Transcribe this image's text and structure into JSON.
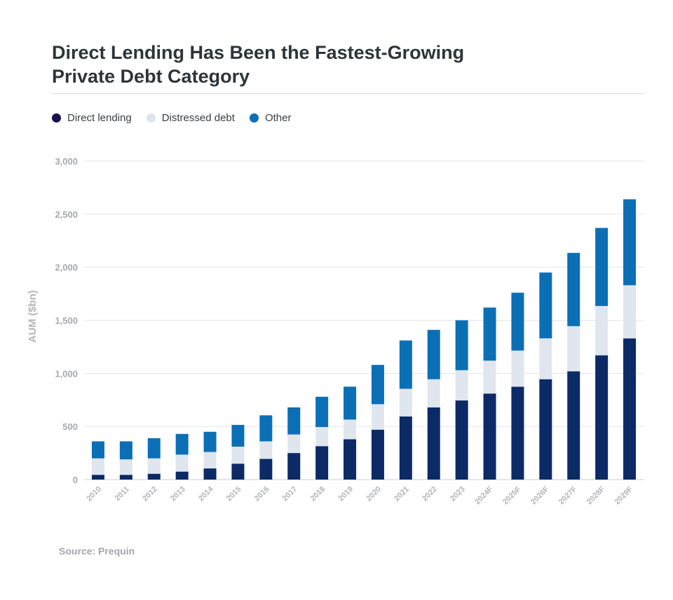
{
  "title_lines": [
    "Direct Lending Has Been the Fastest-Growing",
    "Private Debt Category"
  ],
  "legend": [
    {
      "label": "Direct lending",
      "color": "#0b1f4f"
    },
    {
      "label": "Distressed debt",
      "color": "#dde4ec"
    },
    {
      "label": "Other",
      "color": "#0b6fb6"
    }
  ],
  "source": "Source: Prequin",
  "chart_data": {
    "type": "bar",
    "stacked": true,
    "title": "Direct Lending Has Been the Fastest-Growing Private Debt Category",
    "xlabel": "",
    "ylabel": "AUM ($bn)",
    "ylim": [
      0,
      3000
    ],
    "yticks": [
      0,
      500,
      1000,
      1500,
      2000,
      2500,
      3000
    ],
    "ytick_labels": [
      "0",
      "500",
      "1,000",
      "1,500",
      "2,000",
      "2,500",
      "3,000"
    ],
    "grid": true,
    "legend_position": "top-left",
    "categories": [
      "2010",
      "2011",
      "2012",
      "2013",
      "2014",
      "2015",
      "2016",
      "2017",
      "2018",
      "2019",
      "2020",
      "2021",
      "2022",
      "2023",
      "2024F",
      "2025F",
      "2026F",
      "2027F",
      "2028F",
      "2029F"
    ],
    "series": [
      {
        "name": "Direct lending",
        "color": "#0b2a66",
        "values": [
          45,
          45,
          55,
          75,
          105,
          150,
          195,
          250,
          315,
          380,
          470,
          595,
          680,
          745,
          810,
          875,
          945,
          1020,
          1170,
          1330
        ]
      },
      {
        "name": "Distressed debt",
        "color": "#dfe6ee",
        "values": [
          155,
          145,
          145,
          160,
          155,
          160,
          165,
          175,
          180,
          185,
          240,
          260,
          265,
          285,
          310,
          340,
          385,
          425,
          465,
          500
        ]
      },
      {
        "name": "Other",
        "color": "#0b6fb6",
        "values": [
          160,
          170,
          190,
          195,
          190,
          205,
          245,
          255,
          285,
          310,
          370,
          455,
          465,
          470,
          500,
          545,
          620,
          690,
          735,
          810
        ]
      }
    ]
  }
}
